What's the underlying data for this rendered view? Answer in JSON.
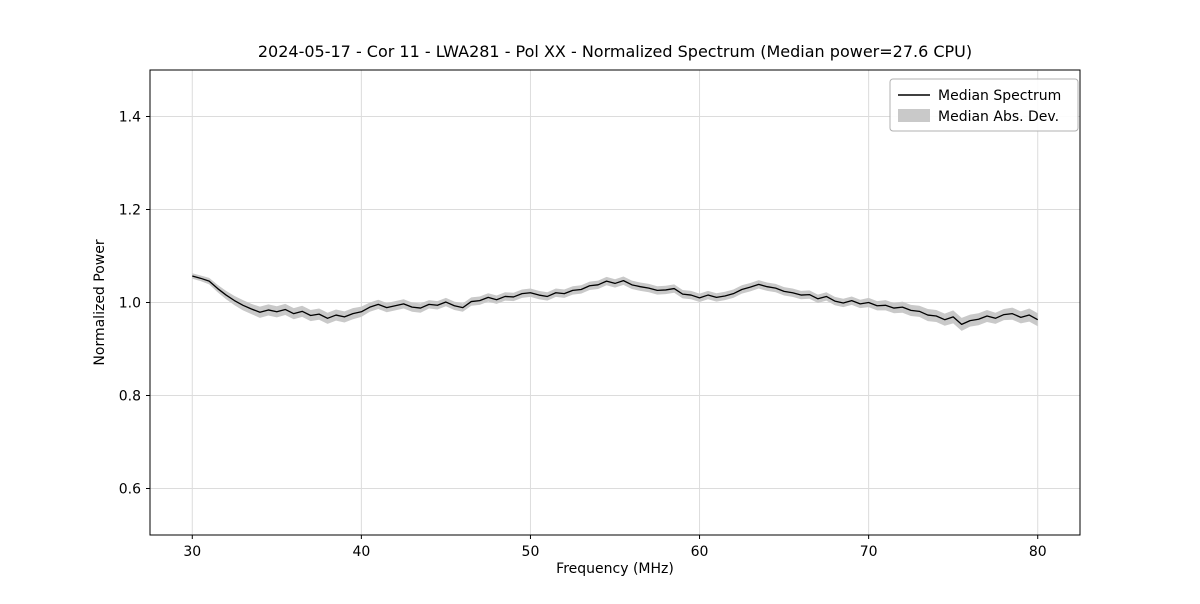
{
  "figure": {
    "title": "2024-05-17 - Cor 11 - LWA281 - Pol XX - Normalized Spectrum (Median power=27.6 CPU)",
    "xlabel": "Frequency (MHz)",
    "ylabel": "Normalized Power"
  },
  "legend": {
    "items": [
      {
        "label": "Median Spectrum",
        "type": "line",
        "color": "#000000"
      },
      {
        "label": "Median Abs. Dev.",
        "type": "patch",
        "color": "#c9c9c9"
      }
    ]
  },
  "chart_data": {
    "type": "line",
    "title": "2024-05-17 - Cor 11 - LWA281 - Pol XX - Normalized Spectrum (Median power=27.6 CPU)",
    "xlabel": "Frequency (MHz)",
    "ylabel": "Normalized Power",
    "xlim": [
      27.5,
      82.5
    ],
    "ylim": [
      0.5,
      1.5
    ],
    "xticks": [
      30,
      40,
      50,
      60,
      70,
      80
    ],
    "yticks": [
      0.6,
      0.8,
      1.0,
      1.2,
      1.4
    ],
    "grid": true,
    "legend_position": "upper right",
    "x": [
      30,
      30.5,
      31,
      31.5,
      32,
      32.5,
      33,
      33.5,
      34,
      34.5,
      35,
      35.5,
      36,
      36.5,
      37,
      37.5,
      38,
      38.5,
      39,
      39.5,
      40,
      40.5,
      41,
      41.5,
      42,
      42.5,
      43,
      43.5,
      44,
      44.5,
      45,
      45.5,
      46,
      46.5,
      47,
      47.5,
      48,
      48.5,
      49,
      49.5,
      50,
      50.5,
      51,
      51.5,
      52,
      52.5,
      53,
      53.5,
      54,
      54.5,
      55,
      55.5,
      56,
      56.5,
      57,
      57.5,
      58,
      58.5,
      59,
      59.5,
      60,
      60.5,
      61,
      61.5,
      62,
      62.5,
      63,
      63.5,
      64,
      64.5,
      65,
      65.5,
      66,
      66.5,
      67,
      67.5,
      68,
      68.5,
      69,
      69.5,
      70,
      70.5,
      71,
      71.5,
      72,
      72.5,
      73,
      73.5,
      74,
      74.5,
      75,
      75.5,
      76,
      76.5,
      77,
      77.5,
      78,
      78.5,
      79,
      79.5,
      80
    ],
    "series": [
      {
        "name": "Median Spectrum",
        "color": "#000000",
        "y": [
          1.057,
          1.052,
          1.046,
          1.03,
          1.016,
          1.004,
          0.994,
          0.986,
          0.979,
          0.984,
          0.98,
          0.985,
          0.976,
          0.981,
          0.972,
          0.975,
          0.966,
          0.973,
          0.969,
          0.976,
          0.98,
          0.99,
          0.996,
          0.989,
          0.993,
          0.997,
          0.99,
          0.988,
          0.996,
          0.994,
          1.001,
          0.993,
          0.989,
          1.002,
          1.004,
          1.011,
          1.006,
          1.013,
          1.012,
          1.019,
          1.021,
          1.016,
          1.013,
          1.021,
          1.019,
          1.026,
          1.028,
          1.036,
          1.038,
          1.046,
          1.041,
          1.047,
          1.038,
          1.034,
          1.031,
          1.026,
          1.027,
          1.03,
          1.018,
          1.016,
          1.01,
          1.016,
          1.011,
          1.014,
          1.019,
          1.028,
          1.033,
          1.039,
          1.034,
          1.031,
          1.024,
          1.021,
          1.016,
          1.017,
          1.008,
          1.013,
          1.003,
          0.999,
          1.004,
          0.997,
          1.0,
          0.993,
          0.994,
          0.988,
          0.99,
          0.983,
          0.981,
          0.973,
          0.971,
          0.963,
          0.969,
          0.953,
          0.961,
          0.964,
          0.971,
          0.966,
          0.974,
          0.976,
          0.968,
          0.973,
          0.963
        ]
      }
    ],
    "band": {
      "name": "Median Abs. Dev.",
      "color": "#c9c9c9",
      "mad": [
        0.006,
        0.006,
        0.007,
        0.008,
        0.009,
        0.01,
        0.011,
        0.011,
        0.012,
        0.012,
        0.012,
        0.012,
        0.012,
        0.012,
        0.012,
        0.012,
        0.012,
        0.012,
        0.012,
        0.012,
        0.011,
        0.01,
        0.01,
        0.01,
        0.01,
        0.01,
        0.01,
        0.01,
        0.009,
        0.009,
        0.009,
        0.009,
        0.009,
        0.009,
        0.009,
        0.009,
        0.009,
        0.009,
        0.009,
        0.009,
        0.009,
        0.009,
        0.009,
        0.009,
        0.009,
        0.009,
        0.009,
        0.009,
        0.009,
        0.009,
        0.009,
        0.009,
        0.009,
        0.009,
        0.009,
        0.009,
        0.009,
        0.009,
        0.009,
        0.009,
        0.009,
        0.009,
        0.009,
        0.009,
        0.009,
        0.009,
        0.009,
        0.009,
        0.009,
        0.009,
        0.009,
        0.009,
        0.009,
        0.009,
        0.009,
        0.009,
        0.009,
        0.009,
        0.009,
        0.009,
        0.01,
        0.01,
        0.011,
        0.011,
        0.012,
        0.012,
        0.012,
        0.013,
        0.013,
        0.013,
        0.014,
        0.014,
        0.013,
        0.013,
        0.013,
        0.012,
        0.012,
        0.013,
        0.013,
        0.014,
        0.014
      ]
    }
  }
}
